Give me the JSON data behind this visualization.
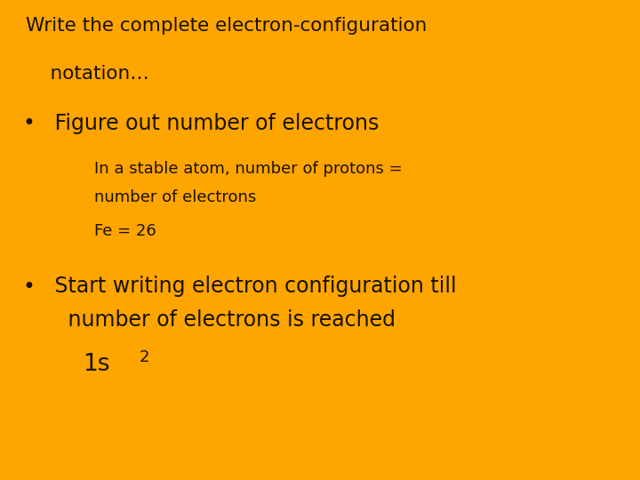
{
  "background_color": "#FFA500",
  "text_color": "#1a1200",
  "figsize": [
    7.2,
    5.4
  ],
  "dpi": 100,
  "title_line1": "Write the complete electron-configuration",
  "title_line2": "    notation…",
  "bullet1_bullet": "•",
  "bullet1_text": " Figure out number of electrons",
  "sub1a_line1": "    In a stable atom, number of protons =",
  "sub1a_line2": "    number of electrons",
  "sub1b": "    Fe = 26",
  "bullet2_bullet": "•",
  "bullet2_line1": " Start writing electron configuration till",
  "bullet2_line2": "   number of electrons is reached",
  "sub2_text": "1s",
  "sub2_super": "2",
  "title_fontsize": 15.5,
  "bullet_fontsize": 17,
  "sub_fontsize": 13,
  "orbital_fontsize": 19,
  "orbital_super_fontsize": 13
}
